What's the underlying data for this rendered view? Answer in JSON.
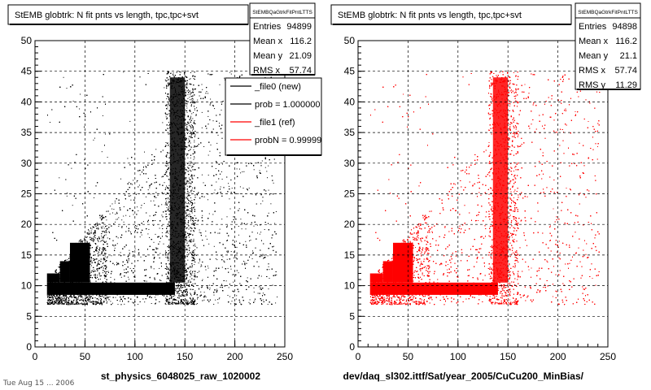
{
  "footer_text": "Tue Aug 15 ... 2006",
  "chart_data": [
    {
      "type": "scatter",
      "title": "StEMB globtrk: N fit pnts vs length, tpc,tpc+svt",
      "xlabel": "st_physics_6048025_raw_1020002",
      "ylabel": "",
      "xlim": [
        0,
        250
      ],
      "ylim": [
        0,
        50
      ],
      "xticks": [
        "0",
        "50",
        "100",
        "150",
        "200",
        "250"
      ],
      "yticks": [
        "0",
        "5",
        "10",
        "15",
        "20",
        "25",
        "30",
        "35",
        "40",
        "45",
        "50"
      ],
      "grid": true,
      "color": "#000000",
      "stats": {
        "name": "StEMBQaGtrkFitPntLTTS",
        "rows": [
          {
            "label": "Entries",
            "value": "94899"
          },
          {
            "label": "Mean x",
            "value": "116.2"
          },
          {
            "label": "Mean y",
            "value": "21.09"
          },
          {
            "label": "RMS x",
            "value": "57.74"
          }
        ]
      },
      "legend": {
        "placement": "top-right",
        "entries": [
          {
            "label": "_file0 (new)",
            "color": "#000000"
          },
          {
            "label": "prob = 1.000000",
            "color": "#000000"
          },
          {
            "label": "_file1 (ref)",
            "color": "#ff0000"
          },
          {
            "label": "probN = 0.99999",
            "color": "#ff0000"
          }
        ]
      }
    },
    {
      "type": "scatter",
      "title": "StEMB globtrk: N fit pnts vs length, tpc,tpc+svt",
      "xlabel": "dev/daq_sl302.ittf/Sat/year_2005/CuCu200_MinBias/",
      "ylabel": "",
      "xlim": [
        0,
        250
      ],
      "ylim": [
        0,
        50
      ],
      "xticks": [
        "0",
        "50",
        "100",
        "150",
        "200",
        "250"
      ],
      "yticks": [
        "0",
        "5",
        "10",
        "15",
        "20",
        "25",
        "30",
        "35",
        "40",
        "45",
        "50"
      ],
      "grid": true,
      "color": "#ff0000",
      "stats": {
        "name": "StEMBQaGtrkFitPntLTTS",
        "rows": [
          {
            "label": "Entries",
            "value": "94898"
          },
          {
            "label": "Mean x",
            "value": "116.2"
          },
          {
            "label": "Mean y",
            "value": "21.1"
          },
          {
            "label": "RMS x",
            "value": "57.74"
          },
          {
            "label": "RMS y",
            "value": "11.29"
          }
        ]
      }
    }
  ]
}
